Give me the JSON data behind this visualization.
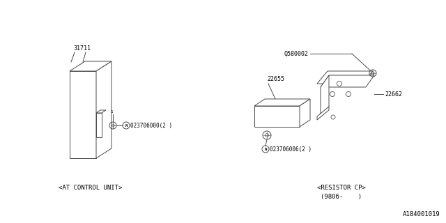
{
  "background_color": "#ffffff",
  "watermark": "A184001019",
  "left_label": "<AT CONTROL UNIT>",
  "right_label_line1": "<RESISTOR CP>",
  "right_label_line2": "(9806-    )",
  "part_numbers": {
    "left_top": "31711",
    "left_bolt_label": "023706000(2 )",
    "right_screw": "Q580002",
    "right_22655": "22655",
    "right_22662": "22662",
    "right_bolt_label": "023706006(2 )"
  },
  "line_color": "#4a4a4a",
  "text_color": "#000000",
  "font_size_labels": 6.5,
  "font_size_parts": 6.0,
  "font_size_watermark": 6.5
}
